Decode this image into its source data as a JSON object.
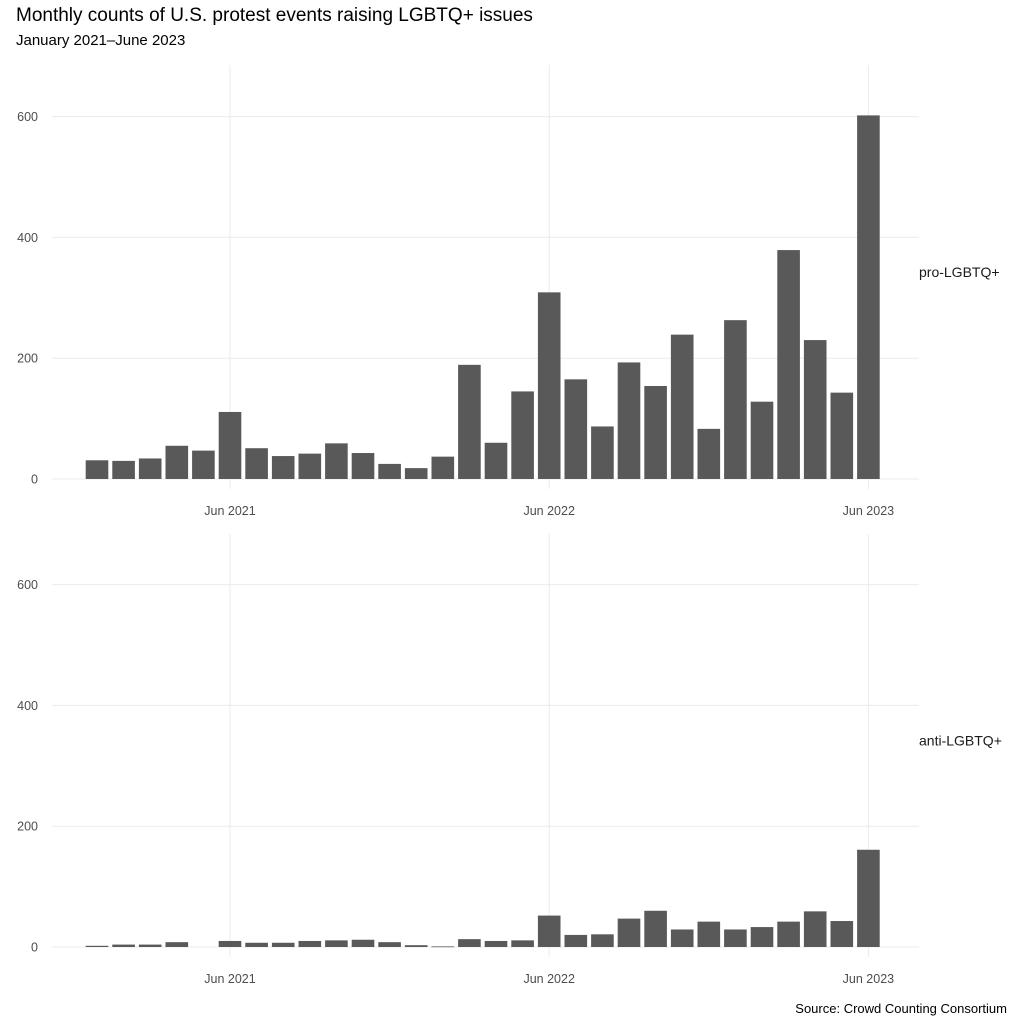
{
  "chart_data": {
    "type": "bar",
    "title": "Monthly counts of U.S. protest events raising LGBTQ+ issues",
    "subtitle": "January 2021–June 2023",
    "caption": "Source: Crowd Counting Consortium",
    "xlabel": "",
    "ylabel": "",
    "ylim": [
      0,
      650
    ],
    "yticks": [
      0,
      200,
      400,
      600
    ],
    "xticks": [
      {
        "label": "Jun 2021",
        "index": 5
      },
      {
        "label": "Jun 2022",
        "index": 17
      },
      {
        "label": "Jun 2023",
        "index": 29
      }
    ],
    "categories": [
      "Jan 2021",
      "Feb 2021",
      "Mar 2021",
      "Apr 2021",
      "May 2021",
      "Jun 2021",
      "Jul 2021",
      "Aug 2021",
      "Sep 2021",
      "Oct 2021",
      "Nov 2021",
      "Dec 2021",
      "Jan 2022",
      "Feb 2022",
      "Mar 2022",
      "Apr 2022",
      "May 2022",
      "Jun 2022",
      "Jul 2022",
      "Aug 2022",
      "Sep 2022",
      "Oct 2022",
      "Nov 2022",
      "Dec 2022",
      "Jan 2023",
      "Feb 2023",
      "Mar 2023",
      "Apr 2023",
      "May 2023",
      "Jun 2023"
    ],
    "series": [
      {
        "name": "pro-LGBTQ+",
        "values": [
          31,
          30,
          34,
          55,
          47,
          111,
          51,
          38,
          42,
          59,
          43,
          25,
          18,
          37,
          189,
          60,
          145,
          309,
          165,
          87,
          193,
          154,
          239,
          83,
          263,
          128,
          379,
          230,
          143,
          602
        ]
      },
      {
        "name": "anti-LGBTQ+",
        "values": [
          2,
          4,
          4,
          8,
          0,
          10,
          7,
          7,
          10,
          11,
          12,
          8,
          3,
          1,
          13,
          10,
          11,
          52,
          20,
          21,
          47,
          60,
          29,
          42,
          29,
          33,
          42,
          59,
          43,
          161
        ]
      }
    ]
  }
}
